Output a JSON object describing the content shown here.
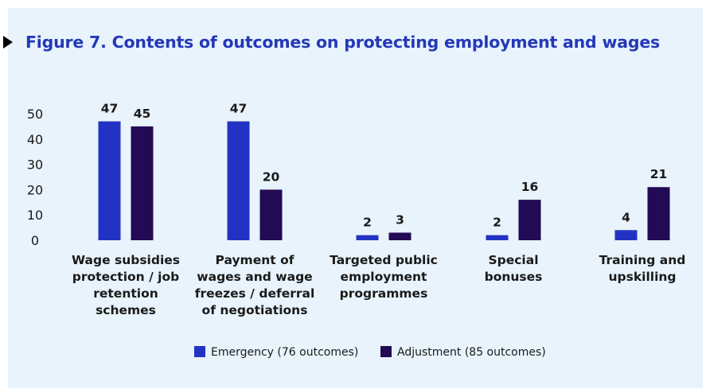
{
  "figure": {
    "title": "Figure 7. Contents of outcomes on protecting employment and wages"
  },
  "chart_data": {
    "type": "bar",
    "categories": [
      "Wage subsidies protection / job retention schemes",
      "Payment of wages and wage freezes / deferral of negotiations",
      "Targeted public employment programmes",
      "Special bonuses",
      "Training and upskilling"
    ],
    "category_lines": [
      [
        "Wage subsidies",
        "protection / job",
        "retention",
        "schemes"
      ],
      [
        "Payment of",
        "wages and wage",
        "freezes / deferral",
        "of negotiations"
      ],
      [
        "Targeted public",
        "employment",
        "programmes"
      ],
      [
        "Special",
        "bonuses"
      ],
      [
        "Training and",
        "upskilling"
      ]
    ],
    "series": [
      {
        "name": "Emergency (76 outcomes)",
        "color": "#2233c4",
        "values": [
          47,
          47,
          2,
          2,
          4
        ]
      },
      {
        "name": "Adjustment (85 outcomes)",
        "color": "#230a55",
        "values": [
          45,
          20,
          3,
          16,
          21
        ]
      }
    ],
    "yticks": [
      0,
      10,
      20,
      30,
      40,
      50
    ],
    "ylim": [
      0,
      50
    ],
    "grid": false,
    "legend_position": "bottom-center",
    "data_labels": true
  }
}
